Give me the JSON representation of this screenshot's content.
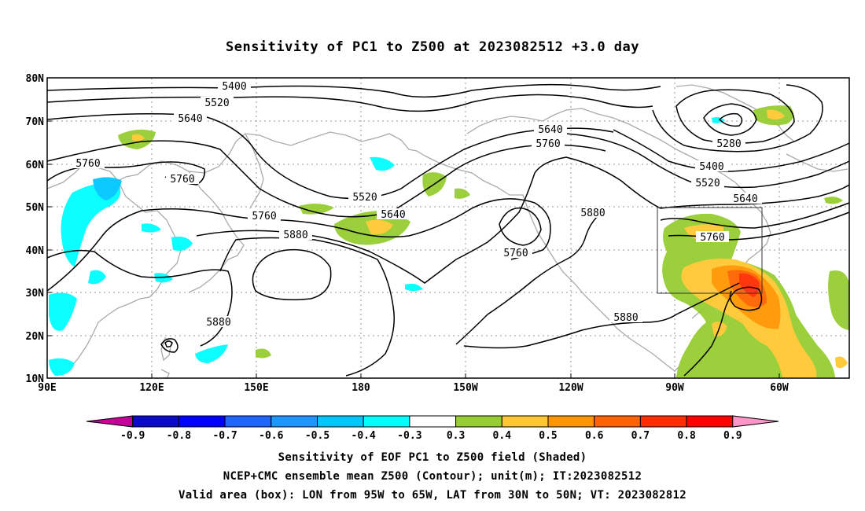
{
  "title": "Sensitivity of PC1 to Z500 at 2023082512 +3.0 day",
  "lat_labels": [
    "80N",
    "70N",
    "60N",
    "50N",
    "40N",
    "30N",
    "20N",
    "10N"
  ],
  "lon_labels": [
    "90E",
    "120E",
    "150E",
    "180",
    "150W",
    "120W",
    "90W",
    "60W"
  ],
  "contour_labels": [
    "5400",
    "5520",
    "5640",
    "5760",
    "5760",
    "5520",
    "5640",
    "5760",
    "5880",
    "5880",
    "5640",
    "5760",
    "5280",
    "5400",
    "5520",
    "5640",
    "5880",
    "5760",
    "5760",
    "5880"
  ],
  "colorbar": {
    "labels": [
      "-0.9",
      "-0.8",
      "-0.7",
      "-0.6",
      "-0.5",
      "-0.4",
      "-0.3",
      "0.3",
      "0.4",
      "0.5",
      "0.6",
      "0.7",
      "0.8",
      "0.9"
    ],
    "colors": [
      "#c8009a",
      "#0a0ac8",
      "#0000ff",
      "#1e64ff",
      "#1e96ff",
      "#00c8ff",
      "#00ffff",
      "#ffffff",
      "#96cd32",
      "#ffc832",
      "#ff9600",
      "#ff6400",
      "#ff2d00",
      "#ff0000",
      "#ff96c8"
    ]
  },
  "caption": {
    "line1": "Sensitivity of EOF PC1 to Z500 field (Shaded)",
    "line2": "NCEP+CMC ensemble mean Z500 (Contour); unit(m); IT:2023082512",
    "line3": "Valid area (box): LON from 95W to 65W, LAT from 30N to 50N; VT: 2023082812"
  }
}
